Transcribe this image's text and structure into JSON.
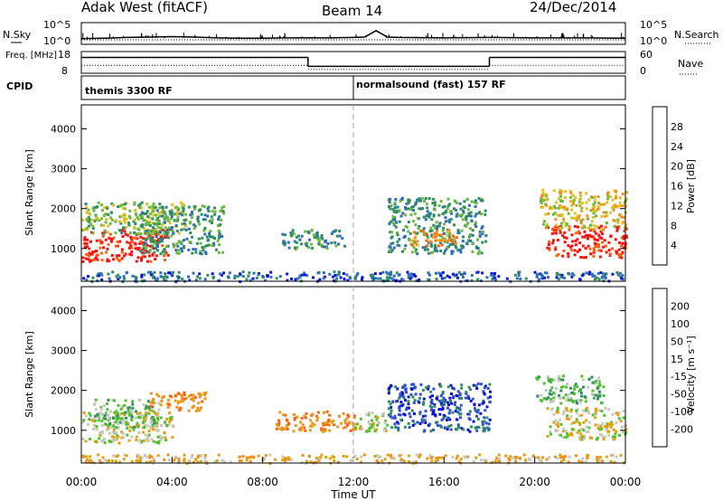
{
  "header": {
    "title": "Adak West (fitACF)",
    "beam": "Beam 14",
    "date": "24/Dec/2014"
  },
  "chart_data": [
    {
      "type": "line",
      "name_label": "N.Sky",
      "right_label": "N.Search",
      "y_ticks_left": [
        "10^5",
        "10^0"
      ],
      "y_ticks_right": [
        "10^5",
        "10^0"
      ],
      "x": [
        0,
        1,
        2,
        3,
        4,
        5,
        6,
        7,
        8,
        9,
        10,
        11,
        12,
        12.5,
        13,
        13.5,
        14,
        16,
        18,
        20,
        22,
        24
      ],
      "series": [
        {
          "values": [
            1.2,
            1.3,
            1.5,
            1.6,
            1.7,
            1.6,
            1.4,
            1.3,
            1.3,
            1.4,
            1.4,
            1.4,
            1.5,
            1.6,
            3.2,
            1.6,
            1.5,
            1.4,
            1.5,
            1.4,
            1.4,
            1.3
          ]
        }
      ]
    },
    {
      "type": "line",
      "name_label": "Freq. [MHz]",
      "sub_label": "CPID",
      "right_label": "Nave",
      "y_ticks_left": [
        "18",
        "8"
      ],
      "y_ticks_right": [
        "60",
        "0"
      ],
      "segments": [
        {
          "x0": 0,
          "x1": 10,
          "freq_level": 0.75,
          "nave_level": 0.35
        },
        {
          "x0": 10,
          "x1": 18,
          "freq_level": 0.3,
          "nave_level": 0.15
        },
        {
          "x0": 18,
          "x1": 24,
          "freq_level": 0.75,
          "nave_level": 0.35
        }
      ],
      "cpid_labels": [
        {
          "text": "themis 3300 RF",
          "x": 0
        },
        {
          "text": "normalsound (fast) 157 RF",
          "x": 12
        }
      ]
    },
    {
      "type": "heatmap",
      "ylabel": "Slant Range [km]",
      "xlim": [
        0,
        24
      ],
      "ylim": [
        180,
        4600
      ],
      "y_ticks": [
        1000,
        2000,
        3000,
        4000
      ],
      "colorbar": {
        "label": "Power [dB]",
        "ticks": [
          "4",
          "8",
          "12",
          "16",
          "20",
          "24",
          "28"
        ],
        "colors": [
          "#1010e0",
          "#2f6fb4",
          "#2f8f5f",
          "#6fb83f",
          "#e0c020",
          "#f09020",
          "#ff6010",
          "#ff1010"
        ]
      },
      "blobs": [
        {
          "t0": 0.0,
          "t1": 3.8,
          "r0": 700,
          "r1": 1500,
          "level": 7
        },
        {
          "t0": 0.0,
          "t1": 4.6,
          "r0": 1400,
          "r1": 2200,
          "level": 3
        },
        {
          "t0": 2.5,
          "t1": 6.3,
          "r0": 900,
          "r1": 2100,
          "level": 2
        },
        {
          "t0": 8.8,
          "t1": 11.6,
          "r0": 1000,
          "r1": 1500,
          "level": 2
        },
        {
          "t0": 13.5,
          "t1": 17.8,
          "r0": 900,
          "r1": 2300,
          "level": 2
        },
        {
          "t0": 14.5,
          "t1": 16.5,
          "r0": 1100,
          "r1": 1500,
          "level": 5
        },
        {
          "t0": 20.5,
          "t1": 24.0,
          "r0": 800,
          "r1": 1600,
          "level": 7
        },
        {
          "t0": 20.2,
          "t1": 24.0,
          "r0": 1500,
          "r1": 2500,
          "level": 4
        },
        {
          "t0": 0.0,
          "t1": 24.0,
          "r0": 200,
          "r1": 450,
          "level": 1
        }
      ]
    },
    {
      "type": "heatmap",
      "ylabel": "Slant Range [km]",
      "xlabel": "Time UT",
      "xlim": [
        0,
        24
      ],
      "ylim": [
        180,
        4600
      ],
      "y_ticks": [
        1000,
        2000,
        3000,
        4000
      ],
      "x_ticks": [
        "00:00",
        "04:00",
        "08:00",
        "12:00",
        "16:00",
        "20:00",
        "00:00"
      ],
      "colorbar": {
        "label": "Velocity [m s⁻¹]",
        "ticks": [
          "-200",
          "-100",
          "-50",
          "-15",
          "15",
          "50",
          "100",
          "200"
        ],
        "colors": [
          "#ff1010",
          "#ff6010",
          "#f09020",
          "#e0a010",
          "#c8c8c0",
          "#50c030",
          "#2f8f5f",
          "#3050d0",
          "#1010d0"
        ]
      },
      "blobs": [
        {
          "t0": 0.0,
          "t1": 4.0,
          "r0": 700,
          "r1": 1500,
          "level": 4
        },
        {
          "t0": 0.5,
          "t1": 3.5,
          "r0": 1100,
          "r1": 1800,
          "level": 5
        },
        {
          "t0": 3.0,
          "t1": 5.5,
          "r0": 1500,
          "r1": 2000,
          "level": 2
        },
        {
          "t0": 8.5,
          "t1": 12.0,
          "r0": 1000,
          "r1": 1500,
          "level": 2
        },
        {
          "t0": 12.0,
          "t1": 13.5,
          "r0": 1000,
          "r1": 1500,
          "level": 4
        },
        {
          "t0": 13.5,
          "t1": 18.0,
          "r0": 1000,
          "r1": 2200,
          "level": 7
        },
        {
          "t0": 20.5,
          "t1": 24.0,
          "r0": 800,
          "r1": 1600,
          "level": 4
        },
        {
          "t0": 20.0,
          "t1": 23.0,
          "r0": 1700,
          "r1": 2400,
          "level": 5
        },
        {
          "t0": 0.0,
          "t1": 24.0,
          "r0": 200,
          "r1": 420,
          "level": 3
        }
      ]
    }
  ]
}
